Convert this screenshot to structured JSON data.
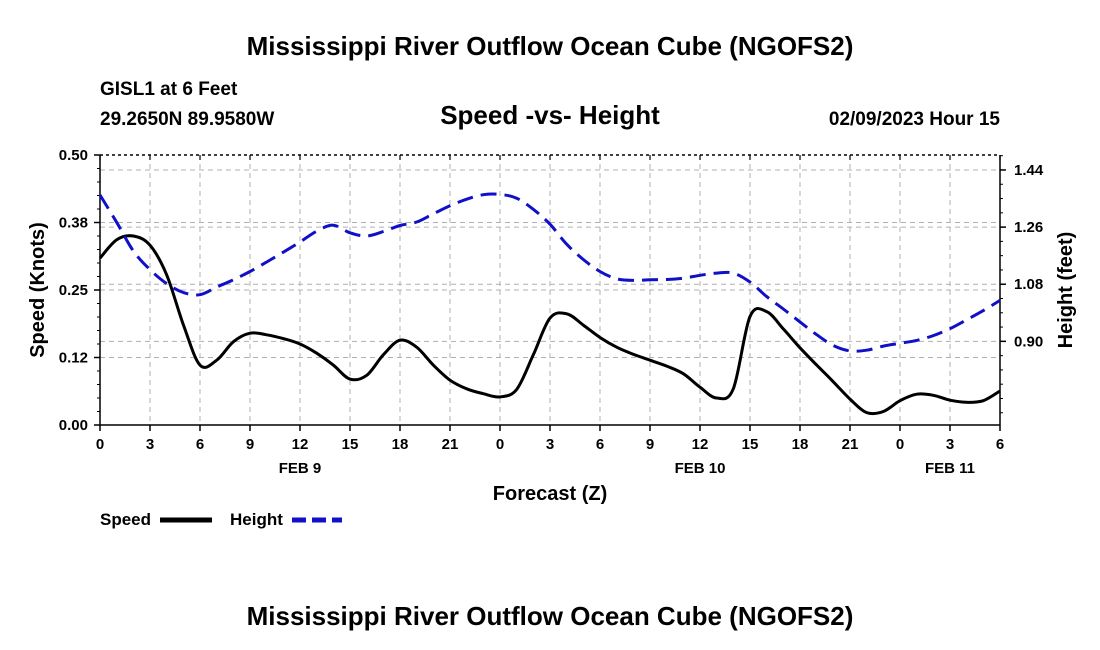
{
  "chart_data": {
    "type": "line",
    "title": "Mississippi River Outflow Ocean Cube (NGOFS2)",
    "footer_title": "Mississippi River Outflow Ocean Cube (NGOFS2)",
    "subtitle": "Speed -vs- Height",
    "station": "GISL1 at 6 Feet",
    "location": "29.2650N  89.9580W",
    "timestamp": "02/09/2023 Hour 15",
    "xlabel": "Forecast (Z)",
    "ylabel_left": "Speed (Knots)",
    "ylabel_right": "Height (feet)",
    "x_tick_labels": [
      "0",
      "3",
      "6",
      "9",
      "12",
      "15",
      "18",
      "21",
      "0",
      "3",
      "6",
      "9",
      "12",
      "15",
      "18",
      "21",
      "0",
      "3",
      "6"
    ],
    "date_labels": [
      {
        "label": "FEB 9",
        "hour": 12
      },
      {
        "label": "FEB 10",
        "hour": 36
      },
      {
        "label": "FEB 11",
        "hour": 51
      }
    ],
    "xlim": [
      0,
      54
    ],
    "ylim_left": [
      0,
      0.5
    ],
    "yticks_left": [
      "0.00",
      "0.12",
      "0.25",
      "0.38",
      "0.50"
    ],
    "yticks_left_values": [
      0,
      0.125,
      0.25,
      0.375,
      0.5
    ],
    "ylim_right": [
      0.6364,
      1.4872
    ],
    "yticks_right": [
      "0.90",
      "1.08",
      "1.26",
      "1.44"
    ],
    "yticks_right_values": [
      0.9,
      1.08,
      1.26,
      1.44
    ],
    "grid": true,
    "series": [
      {
        "name": "Speed",
        "axis": "left",
        "color": "#000000",
        "dash": "solid",
        "x": [
          0,
          1,
          2,
          3,
          4,
          5,
          6,
          7,
          8,
          9,
          10,
          11,
          12,
          13,
          14,
          15,
          16,
          17,
          18,
          19,
          20,
          21,
          22,
          23,
          24,
          25,
          26,
          27,
          28,
          29,
          30,
          31,
          32,
          33,
          34,
          35,
          36,
          37,
          38,
          39,
          40,
          41,
          42,
          43,
          44,
          45,
          46,
          47,
          48,
          49,
          50,
          51,
          52,
          53,
          54
        ],
        "values": [
          0.309,
          0.343,
          0.35,
          0.333,
          0.278,
          0.186,
          0.111,
          0.12,
          0.154,
          0.17,
          0.167,
          0.16,
          0.15,
          0.133,
          0.111,
          0.085,
          0.092,
          0.13,
          0.157,
          0.144,
          0.111,
          0.083,
          0.067,
          0.058,
          0.052,
          0.066,
          0.13,
          0.198,
          0.206,
          0.185,
          0.162,
          0.144,
          0.131,
          0.12,
          0.109,
          0.095,
          0.07,
          0.05,
          0.067,
          0.201,
          0.21,
          0.178,
          0.143,
          0.111,
          0.08,
          0.048,
          0.023,
          0.025,
          0.045,
          0.057,
          0.055,
          0.046,
          0.042,
          0.045,
          0.063
        ]
      },
      {
        "name": "Height",
        "axis": "right",
        "color": "#1010c8",
        "dash": "dashed",
        "x": [
          0,
          1,
          2,
          3,
          4,
          5,
          6,
          7,
          8,
          9,
          10,
          11,
          12,
          13,
          14,
          15,
          16,
          17,
          18,
          19,
          20,
          21,
          22,
          23,
          24,
          25,
          26,
          27,
          28,
          29,
          30,
          31,
          32,
          33,
          34,
          35,
          36,
          37,
          38,
          39,
          40,
          41,
          42,
          43,
          44,
          45,
          46,
          47,
          48,
          49,
          50,
          51,
          52,
          53,
          54
        ],
        "values": [
          1.361,
          1.275,
          1.185,
          1.126,
          1.082,
          1.054,
          1.047,
          1.071,
          1.094,
          1.12,
          1.15,
          1.181,
          1.213,
          1.247,
          1.266,
          1.242,
          1.232,
          1.246,
          1.265,
          1.276,
          1.302,
          1.327,
          1.348,
          1.362,
          1.363,
          1.351,
          1.316,
          1.269,
          1.206,
          1.158,
          1.12,
          1.097,
          1.092,
          1.094,
          1.095,
          1.099,
          1.108,
          1.115,
          1.115,
          1.087,
          1.041,
          1.002,
          0.961,
          0.921,
          0.887,
          0.87,
          0.872,
          0.885,
          0.894,
          0.903,
          0.918,
          0.94,
          0.968,
          0.997,
          1.029
        ]
      }
    ],
    "legend": [
      {
        "label": "Speed"
      },
      {
        "label": "Height"
      }
    ]
  }
}
